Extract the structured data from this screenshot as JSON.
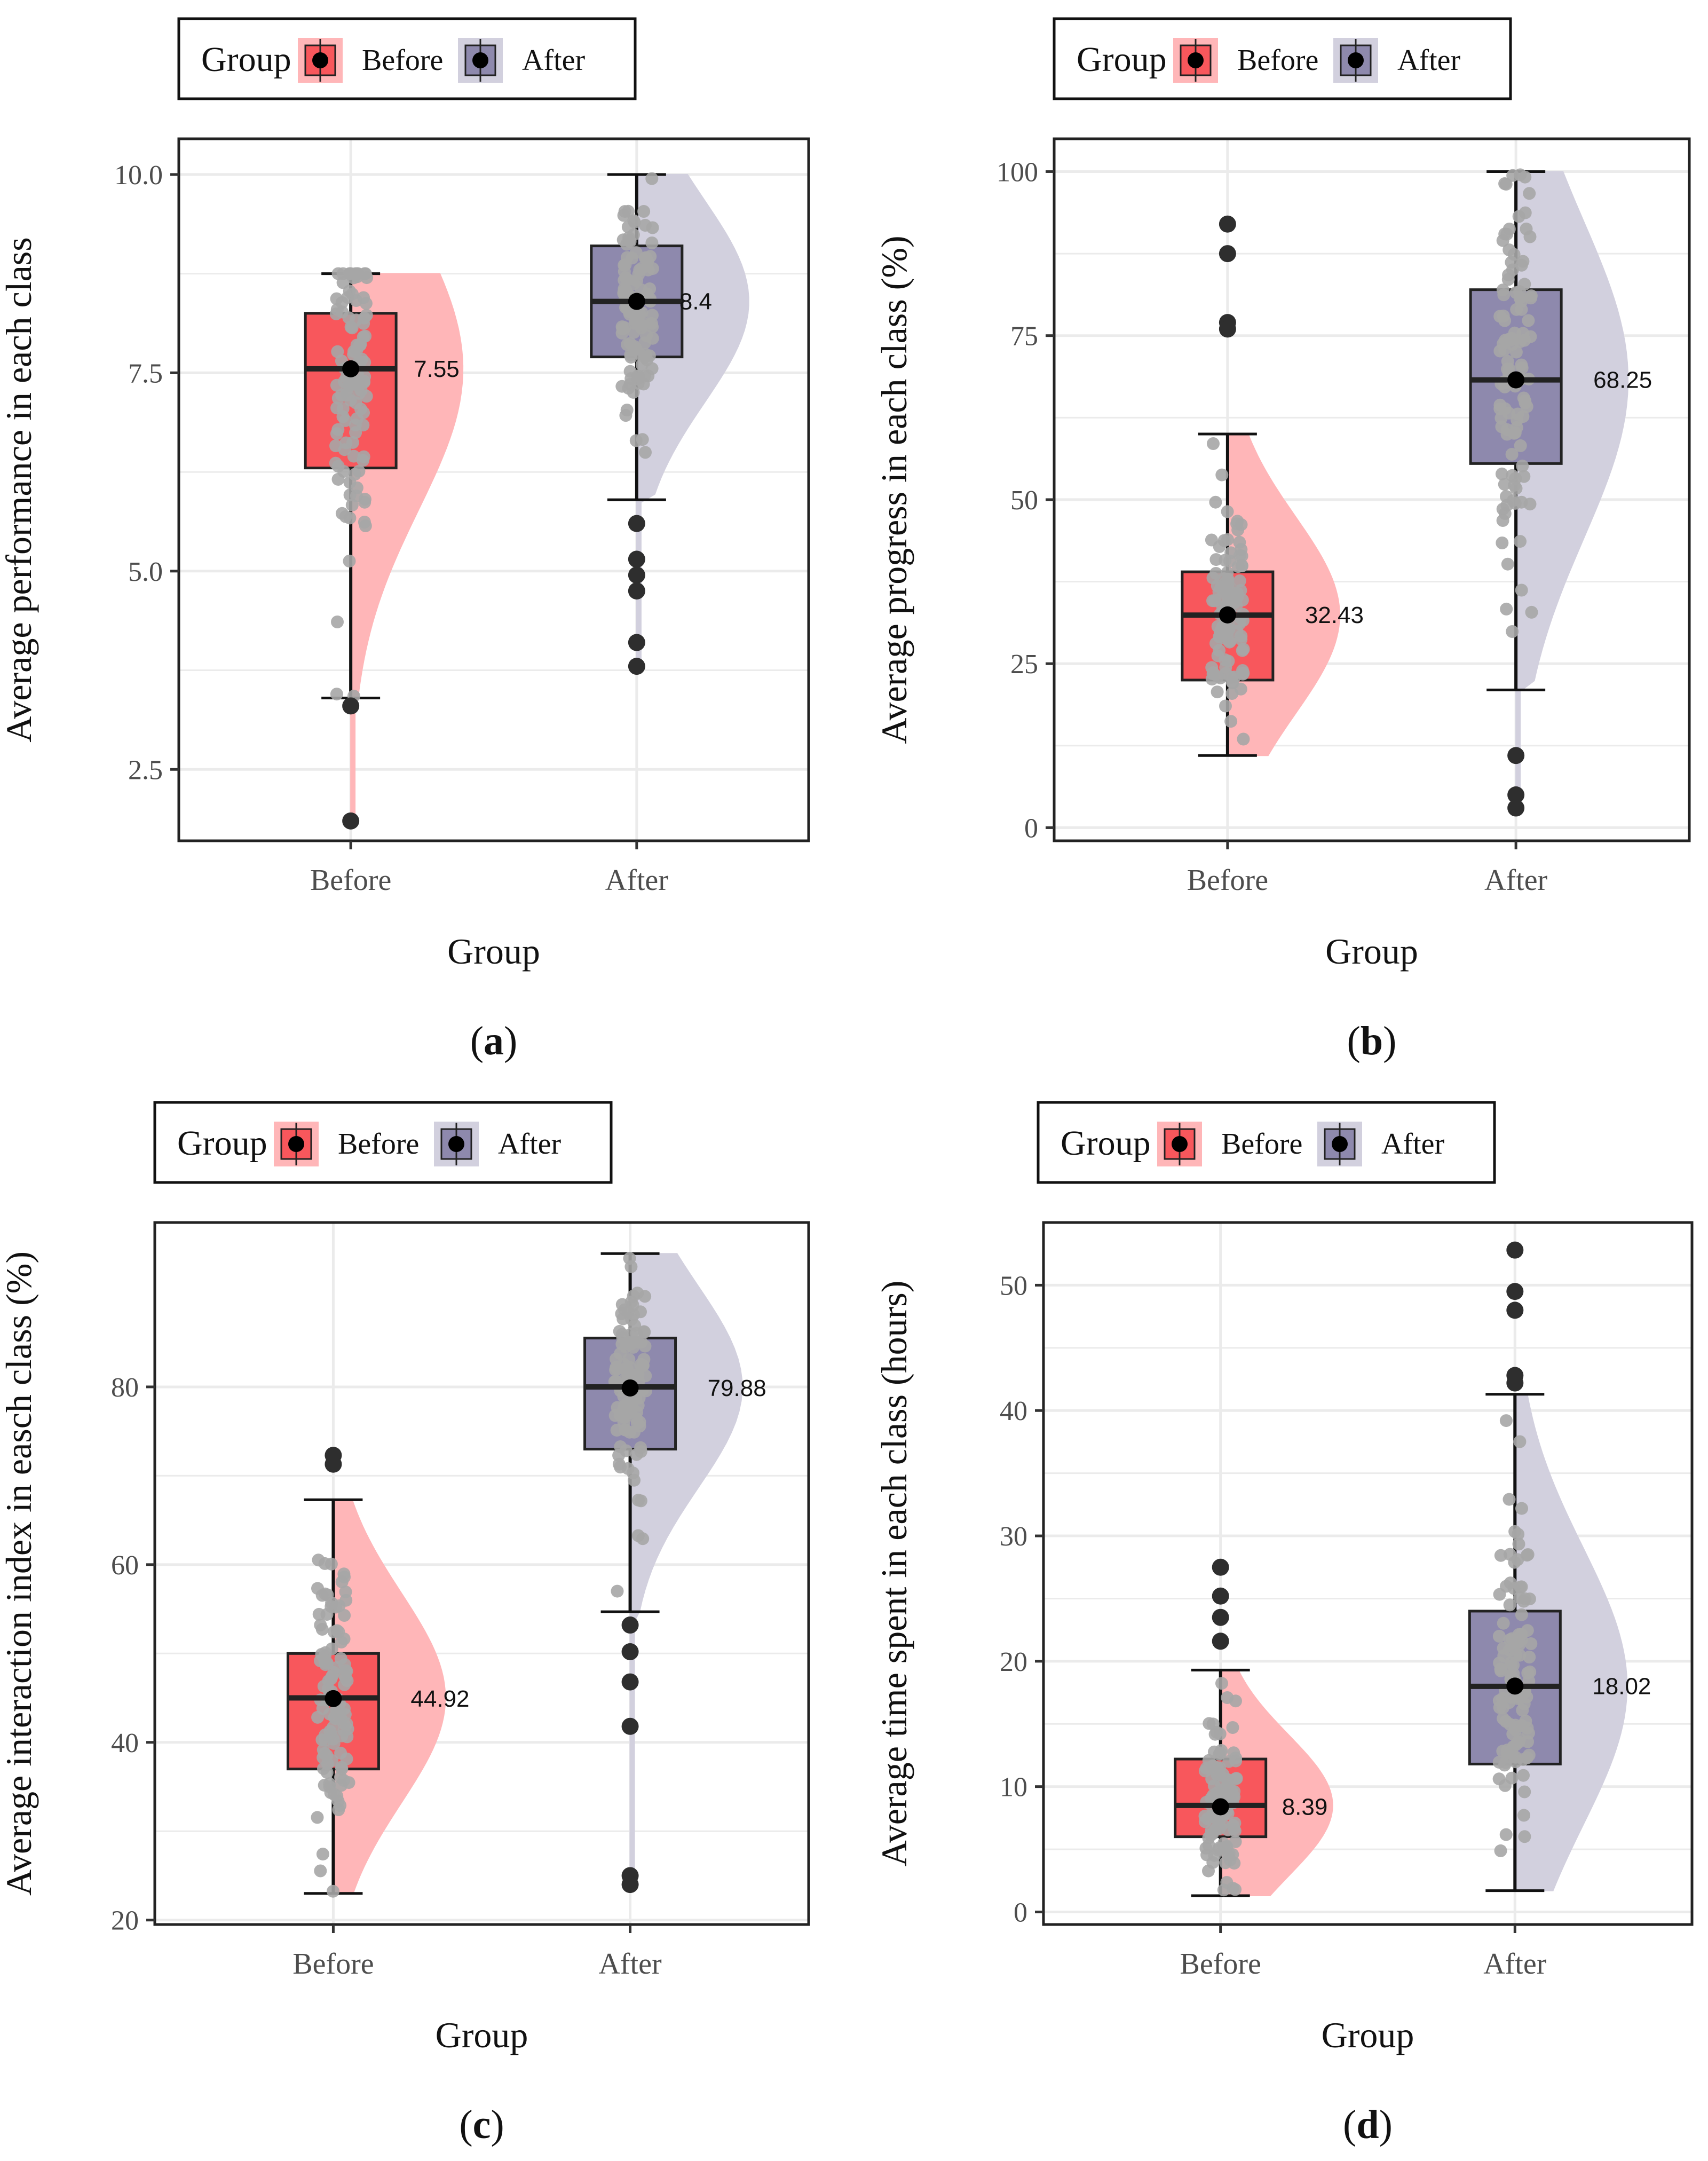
{
  "colors": {
    "before": "#F8575C",
    "after": "#8E89AD",
    "before_violin": "#FFB6B8",
    "after_violin": "#D2D0DE",
    "points": "#A6A6A6",
    "outliers": "#2E2E2E",
    "grid": "#EBEBEB",
    "axis": "#333333"
  },
  "chart_data": [
    {
      "panel_label": "(a)",
      "panel_letter": "a",
      "type": "box",
      "legend": {
        "title": "Group",
        "items": [
          "Before",
          "After"
        ],
        "placement": "top-left"
      },
      "xlabel": "Group",
      "ylabel": "Average performance in each class",
      "categories": [
        "Before",
        "After"
      ],
      "ylim": [
        1.6,
        10.45
      ],
      "yticks": [
        2.5,
        5.0,
        7.5,
        10.0
      ],
      "yticklabels": [
        "2.5",
        "5.0",
        "7.5",
        "10.0"
      ],
      "series": [
        {
          "name": "Before",
          "min": 3.4,
          "q1": 6.3,
          "median": 7.55,
          "q3": 8.25,
          "max": 8.75,
          "mean": 7.55,
          "mean_label": "7.55",
          "outliers": [
            3.3,
            1.85
          ],
          "data_min": 1.8
        },
        {
          "name": "After",
          "min": 5.9,
          "q1": 7.7,
          "median": 8.4,
          "q3": 9.1,
          "max": 10.0,
          "mean": 8.4,
          "mean_label": "8.4",
          "outliers": [
            5.6,
            5.15,
            4.95,
            4.75,
            4.1,
            3.8
          ],
          "data_min": 3.8
        }
      ]
    },
    {
      "panel_label": "(b)",
      "panel_letter": "b",
      "type": "box",
      "legend": {
        "title": "Group",
        "items": [
          "Before",
          "After"
        ],
        "placement": "top-left"
      },
      "xlabel": "Group",
      "ylabel": "Average progress in each class (%)",
      "categories": [
        "Before",
        "After"
      ],
      "ylim": [
        -2,
        105
      ],
      "yticks": [
        0,
        25,
        50,
        75,
        100
      ],
      "yticklabels": [
        "0",
        "25",
        "50",
        "75",
        "100"
      ],
      "series": [
        {
          "name": "Before",
          "min": 11,
          "q1": 22.5,
          "median": 32.4,
          "q3": 39,
          "max": 60,
          "mean": 32.43,
          "mean_label": "32.43",
          "outliers": [
            92,
            87.5,
            77,
            76
          ],
          "data_min": 11
        },
        {
          "name": "After",
          "min": 21,
          "q1": 55.5,
          "median": 68.25,
          "q3": 82,
          "max": 100,
          "mean": 68.25,
          "mean_label": "68.25",
          "outliers": [
            11,
            5,
            3
          ],
          "data_min": 3
        }
      ]
    },
    {
      "panel_label": "(c)",
      "panel_letter": "c",
      "type": "box",
      "legend": {
        "title": "Group",
        "items": [
          "Before",
          "After"
        ],
        "placement": "top-left"
      },
      "xlabel": "Group",
      "ylabel": "Average interaction index in easch class (%)",
      "categories": [
        "Before",
        "After"
      ],
      "ylim": [
        19.5,
        98.5
      ],
      "yticks": [
        20,
        40,
        60,
        80
      ],
      "yticklabels": [
        "20",
        "40",
        "60",
        "80"
      ],
      "series": [
        {
          "name": "Before",
          "min": 23,
          "q1": 37,
          "median": 45,
          "q3": 50,
          "max": 67.3,
          "mean": 44.92,
          "mean_label": "44.92",
          "outliers": [
            72.3,
            71.3
          ],
          "data_min": 23
        },
        {
          "name": "After",
          "min": 54.7,
          "q1": 73,
          "median": 80,
          "q3": 85.5,
          "max": 95,
          "mean": 79.88,
          "mean_label": "79.88",
          "outliers": [
            53.2,
            50.2,
            46.8,
            41.8,
            25,
            24
          ],
          "data_min": 24
        }
      ]
    },
    {
      "panel_label": "(d)",
      "panel_letter": "d",
      "type": "box",
      "legend": {
        "title": "Group",
        "items": [
          "Before",
          "After"
        ],
        "placement": "top-left"
      },
      "xlabel": "Group",
      "ylabel": "Average time spent in each class (hours)",
      "categories": [
        "Before",
        "After"
      ],
      "ylim": [
        -1,
        55
      ],
      "yticks": [
        0,
        10,
        20,
        30,
        40,
        50
      ],
      "yticklabels": [
        "0",
        "10",
        "20",
        "30",
        "40",
        "50"
      ],
      "series": [
        {
          "name": "Before",
          "min": 1.3,
          "q1": 6,
          "median": 8.5,
          "q3": 12.2,
          "max": 19.3,
          "mean": 8.39,
          "mean_label": "8.39",
          "outliers": [
            27.5,
            25.2,
            23.5,
            21.6
          ],
          "data_min": 1.3
        },
        {
          "name": "After",
          "min": 1.7,
          "q1": 11.8,
          "median": 18,
          "q3": 24,
          "max": 41.3,
          "mean": 18.02,
          "mean_label": "18.02",
          "outliers": [
            52.8,
            49.5,
            48,
            42.8,
            42.2
          ],
          "data_min": 1.7
        }
      ]
    }
  ]
}
